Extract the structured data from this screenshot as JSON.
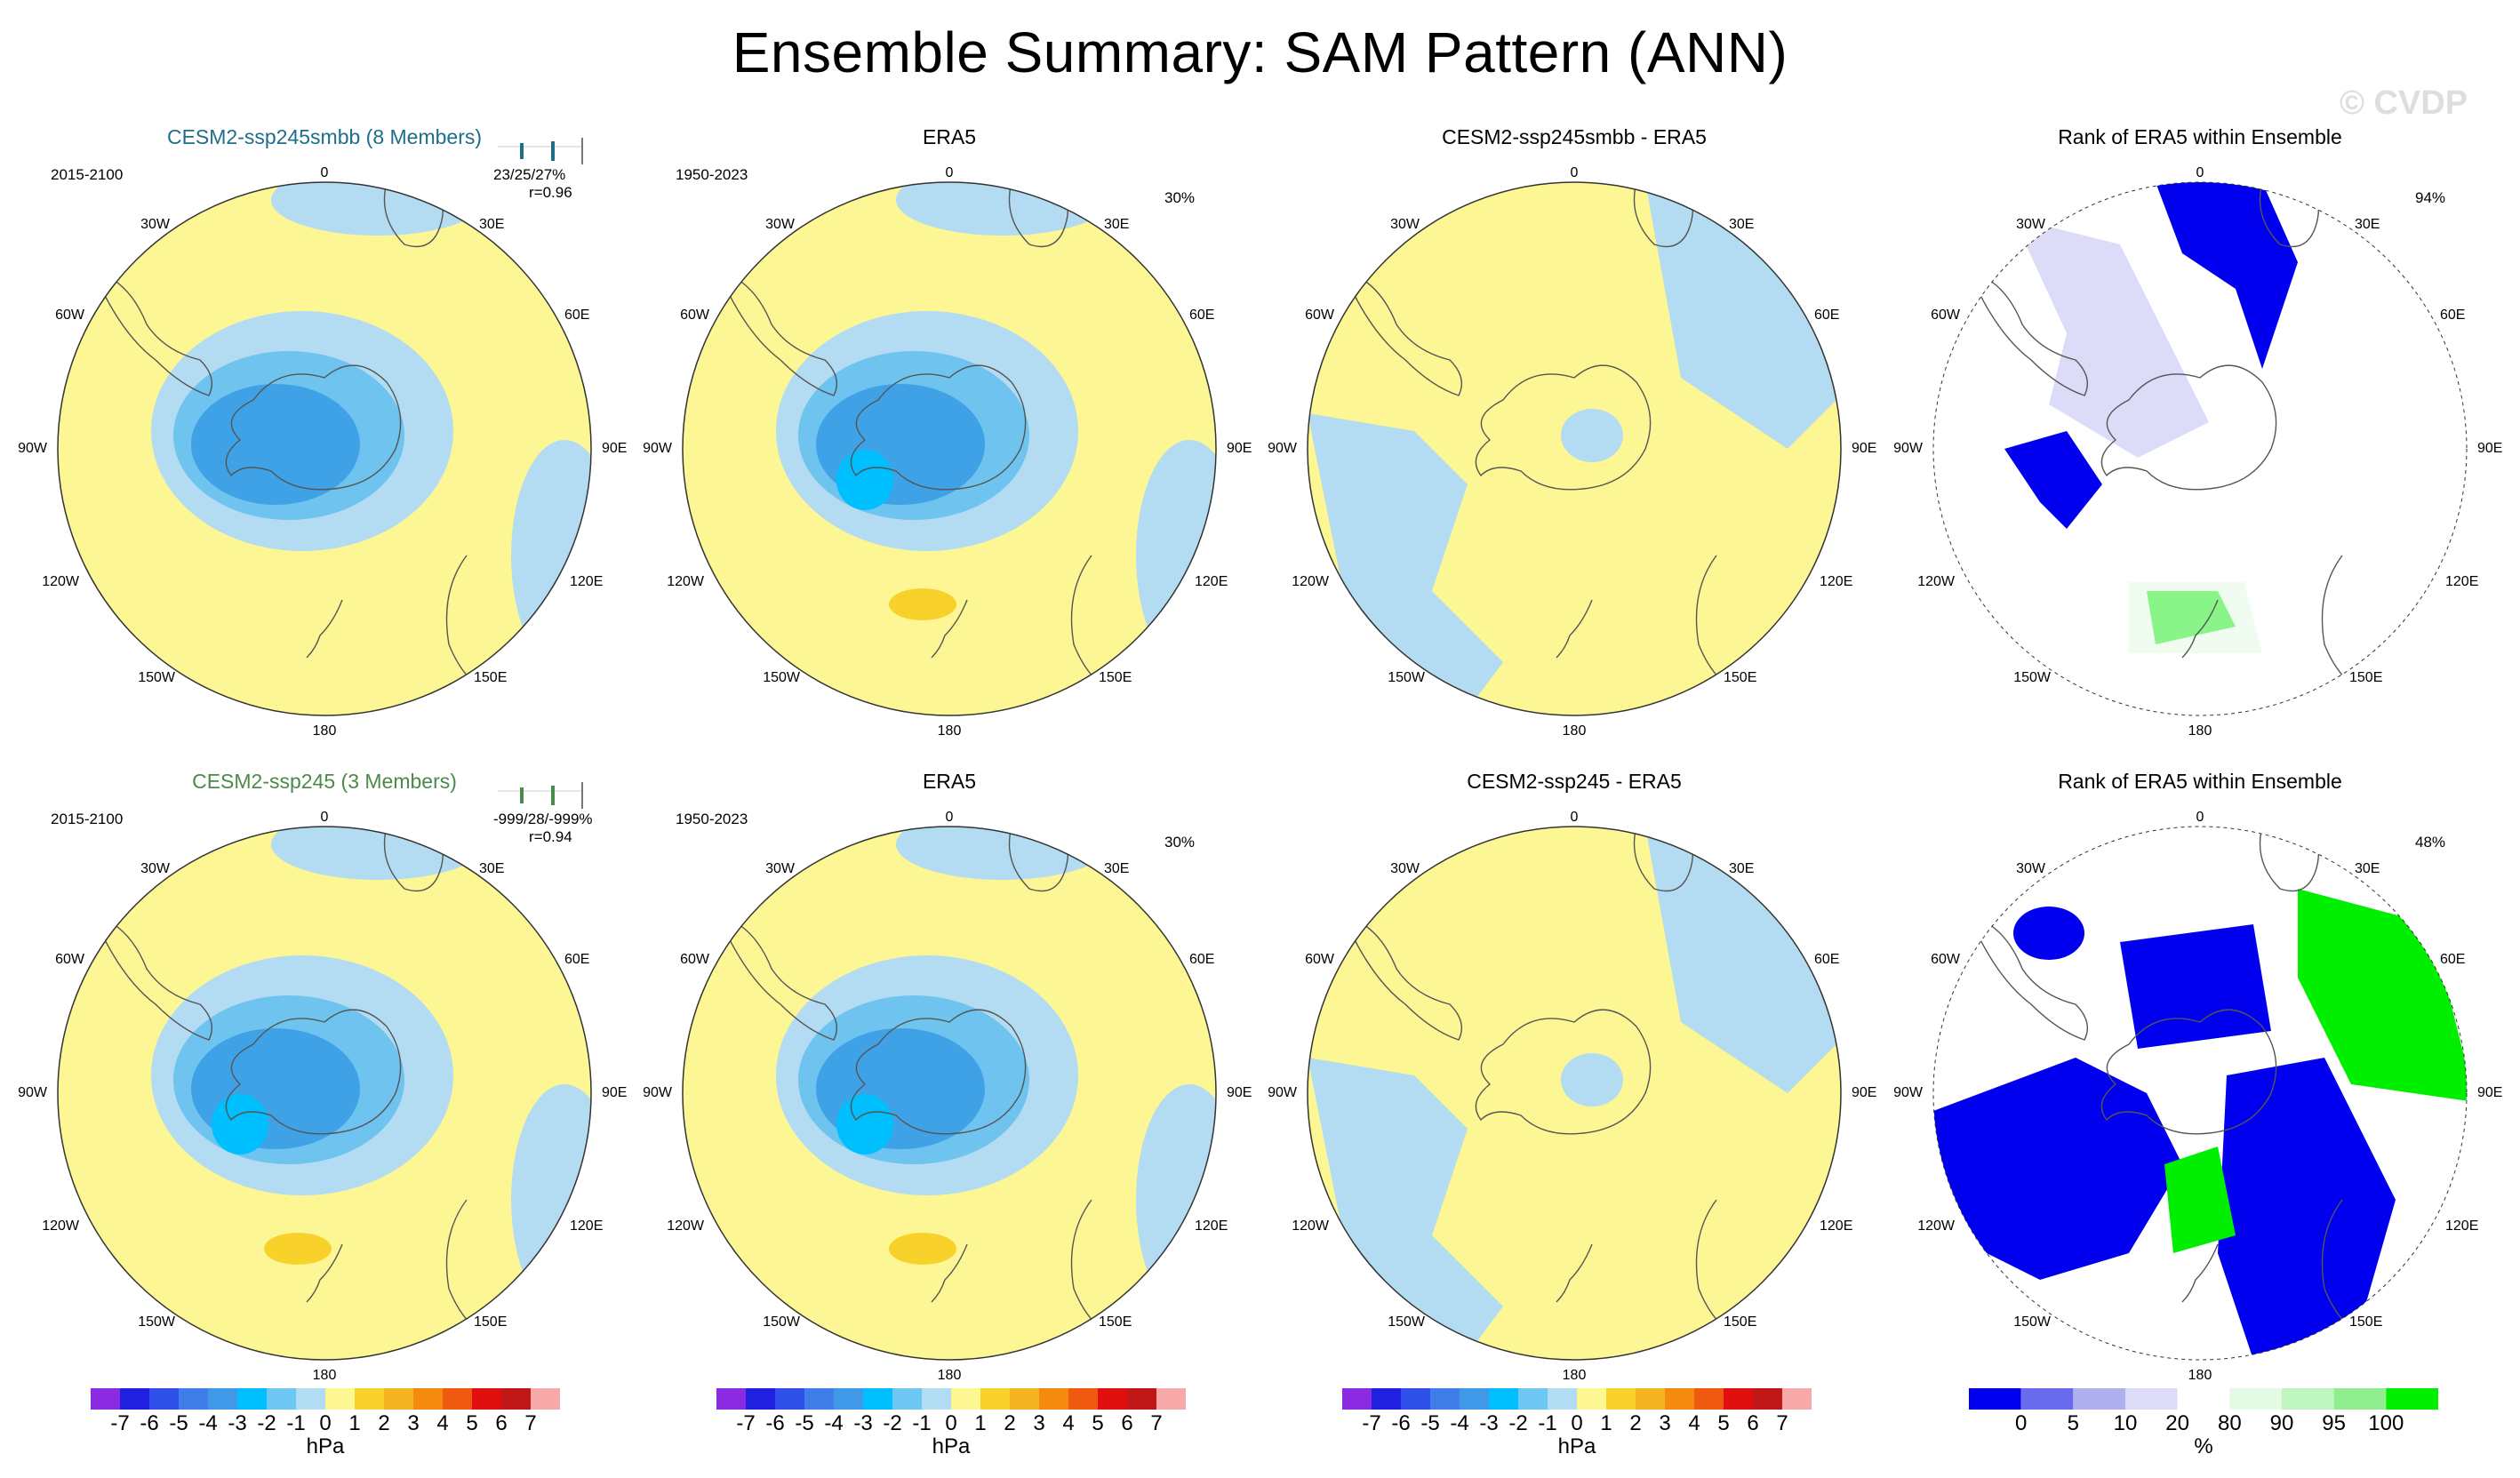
{
  "title": "Ensemble Summary: SAM Pattern (ANN)",
  "watermark": "© CVDP",
  "rows": [
    {
      "panels": [
        {
          "title": "CESM2-ssp245smbb (8 Members)",
          "title_style": "model1",
          "period": "2015-2100",
          "stats_line1": "23/25/27%",
          "stats_line2": "r=0.96"
        },
        {
          "title": "ERA5",
          "period": "1950-2023",
          "percent": "30%"
        },
        {
          "title": "CESM2-ssp245smbb - ERA5"
        },
        {
          "title": "Rank of ERA5 within Ensemble",
          "percent": "94%"
        }
      ]
    },
    {
      "panels": [
        {
          "title": "CESM2-ssp245 (3 Members)",
          "title_style": "model2",
          "period": "2015-2100",
          "stats_line1": "-999/28/-999%",
          "stats_line2": "r=0.94"
        },
        {
          "title": "ERA5",
          "period": "1950-2023",
          "percent": "30%"
        },
        {
          "title": "CESM2-ssp245 - ERA5"
        },
        {
          "title": "Rank of ERA5 within Ensemble",
          "percent": "48%"
        }
      ]
    }
  ],
  "longitude_labels": {
    "top": "0",
    "top_left": "30W",
    "top_right": "30E",
    "upper_left": "60W",
    "upper_right": "60E",
    "left": "90W",
    "right": "90E",
    "lower_left": "120W",
    "lower_right": "120E",
    "bottom_left": "150W",
    "bottom_right": "150E",
    "bottom": "180"
  },
  "colorbar_hpa": {
    "unit": "hPa",
    "labels": [
      "-7",
      "-6",
      "-5",
      "-4",
      "-3",
      "-2",
      "-1",
      "0",
      "1",
      "2",
      "3",
      "4",
      "5",
      "6",
      "7"
    ],
    "colors": [
      "#8a2be2",
      "#2020e0",
      "#2f50e8",
      "#3f7ee8",
      "#3f99e8",
      "#00bfff",
      "#6ec6f2",
      "#b2dcf2",
      "#fcf793",
      "#f8d22a",
      "#f5b421",
      "#f58a10",
      "#f05a10",
      "#e01010",
      "#c01818",
      "#f7a8a8"
    ]
  },
  "colorbar_rank": {
    "unit": "%",
    "labels": [
      "0",
      "5",
      "10",
      "20",
      "80",
      "90",
      "95",
      "100"
    ],
    "colors": [
      "#0000ee",
      "#6a6aee",
      "#b0b0ee",
      "#dcdcf8",
      "#ffffff",
      "#e4fae4",
      "#bff5bf",
      "#90ee90",
      "#00ee00"
    ]
  },
  "map_colors": {
    "light_blue": "#b3dcf2",
    "mid_blue": "#6ec3ef",
    "dark_blue": "#3fa2e6",
    "cyan": "#00bfff",
    "yellow": "#fcf794",
    "orange": "#f8d22a",
    "rank_blue": "#0000ee",
    "rank_lavender": "#dcdcf8",
    "rank_green": "#00ee00",
    "rank_pale_green": "#e4fae4",
    "coast": "#555555"
  }
}
